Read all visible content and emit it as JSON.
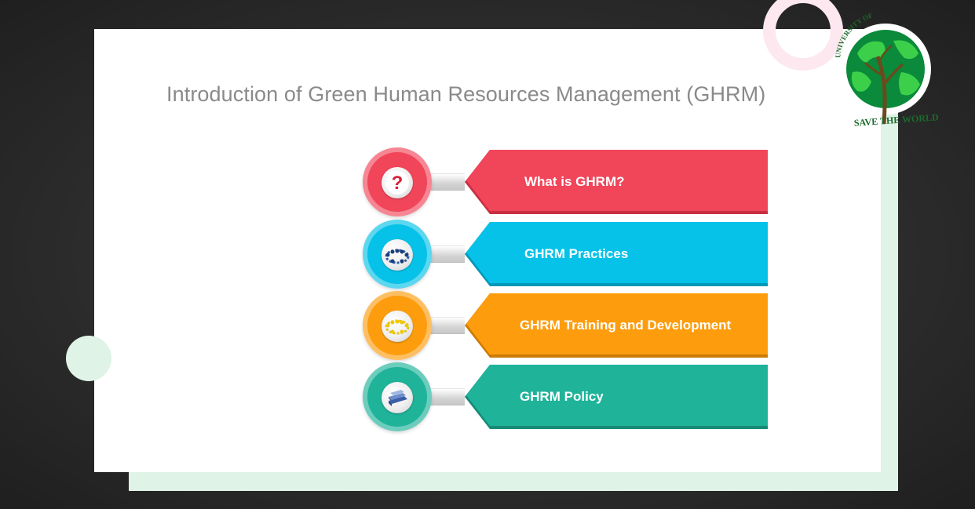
{
  "slide": {
    "title": "Introduction of Green Human Resources Management (GHRM)"
  },
  "logo": {
    "ring_text": "UNIVERSITY OF",
    "banner_text": "SAVE THE WORLD"
  },
  "items": [
    {
      "label": "What is GHRM?",
      "icon": "question-icon",
      "color": "#f1455a"
    },
    {
      "label": "GHRM Practices",
      "icon": "team-circle-icon",
      "color": "#06c2e8"
    },
    {
      "label": "GHRM Training and Development",
      "icon": "training-group-icon",
      "color": "#fd9d0e"
    },
    {
      "label": "GHRM Policy",
      "icon": "policy-books-icon",
      "color": "#1fb39a"
    }
  ]
}
